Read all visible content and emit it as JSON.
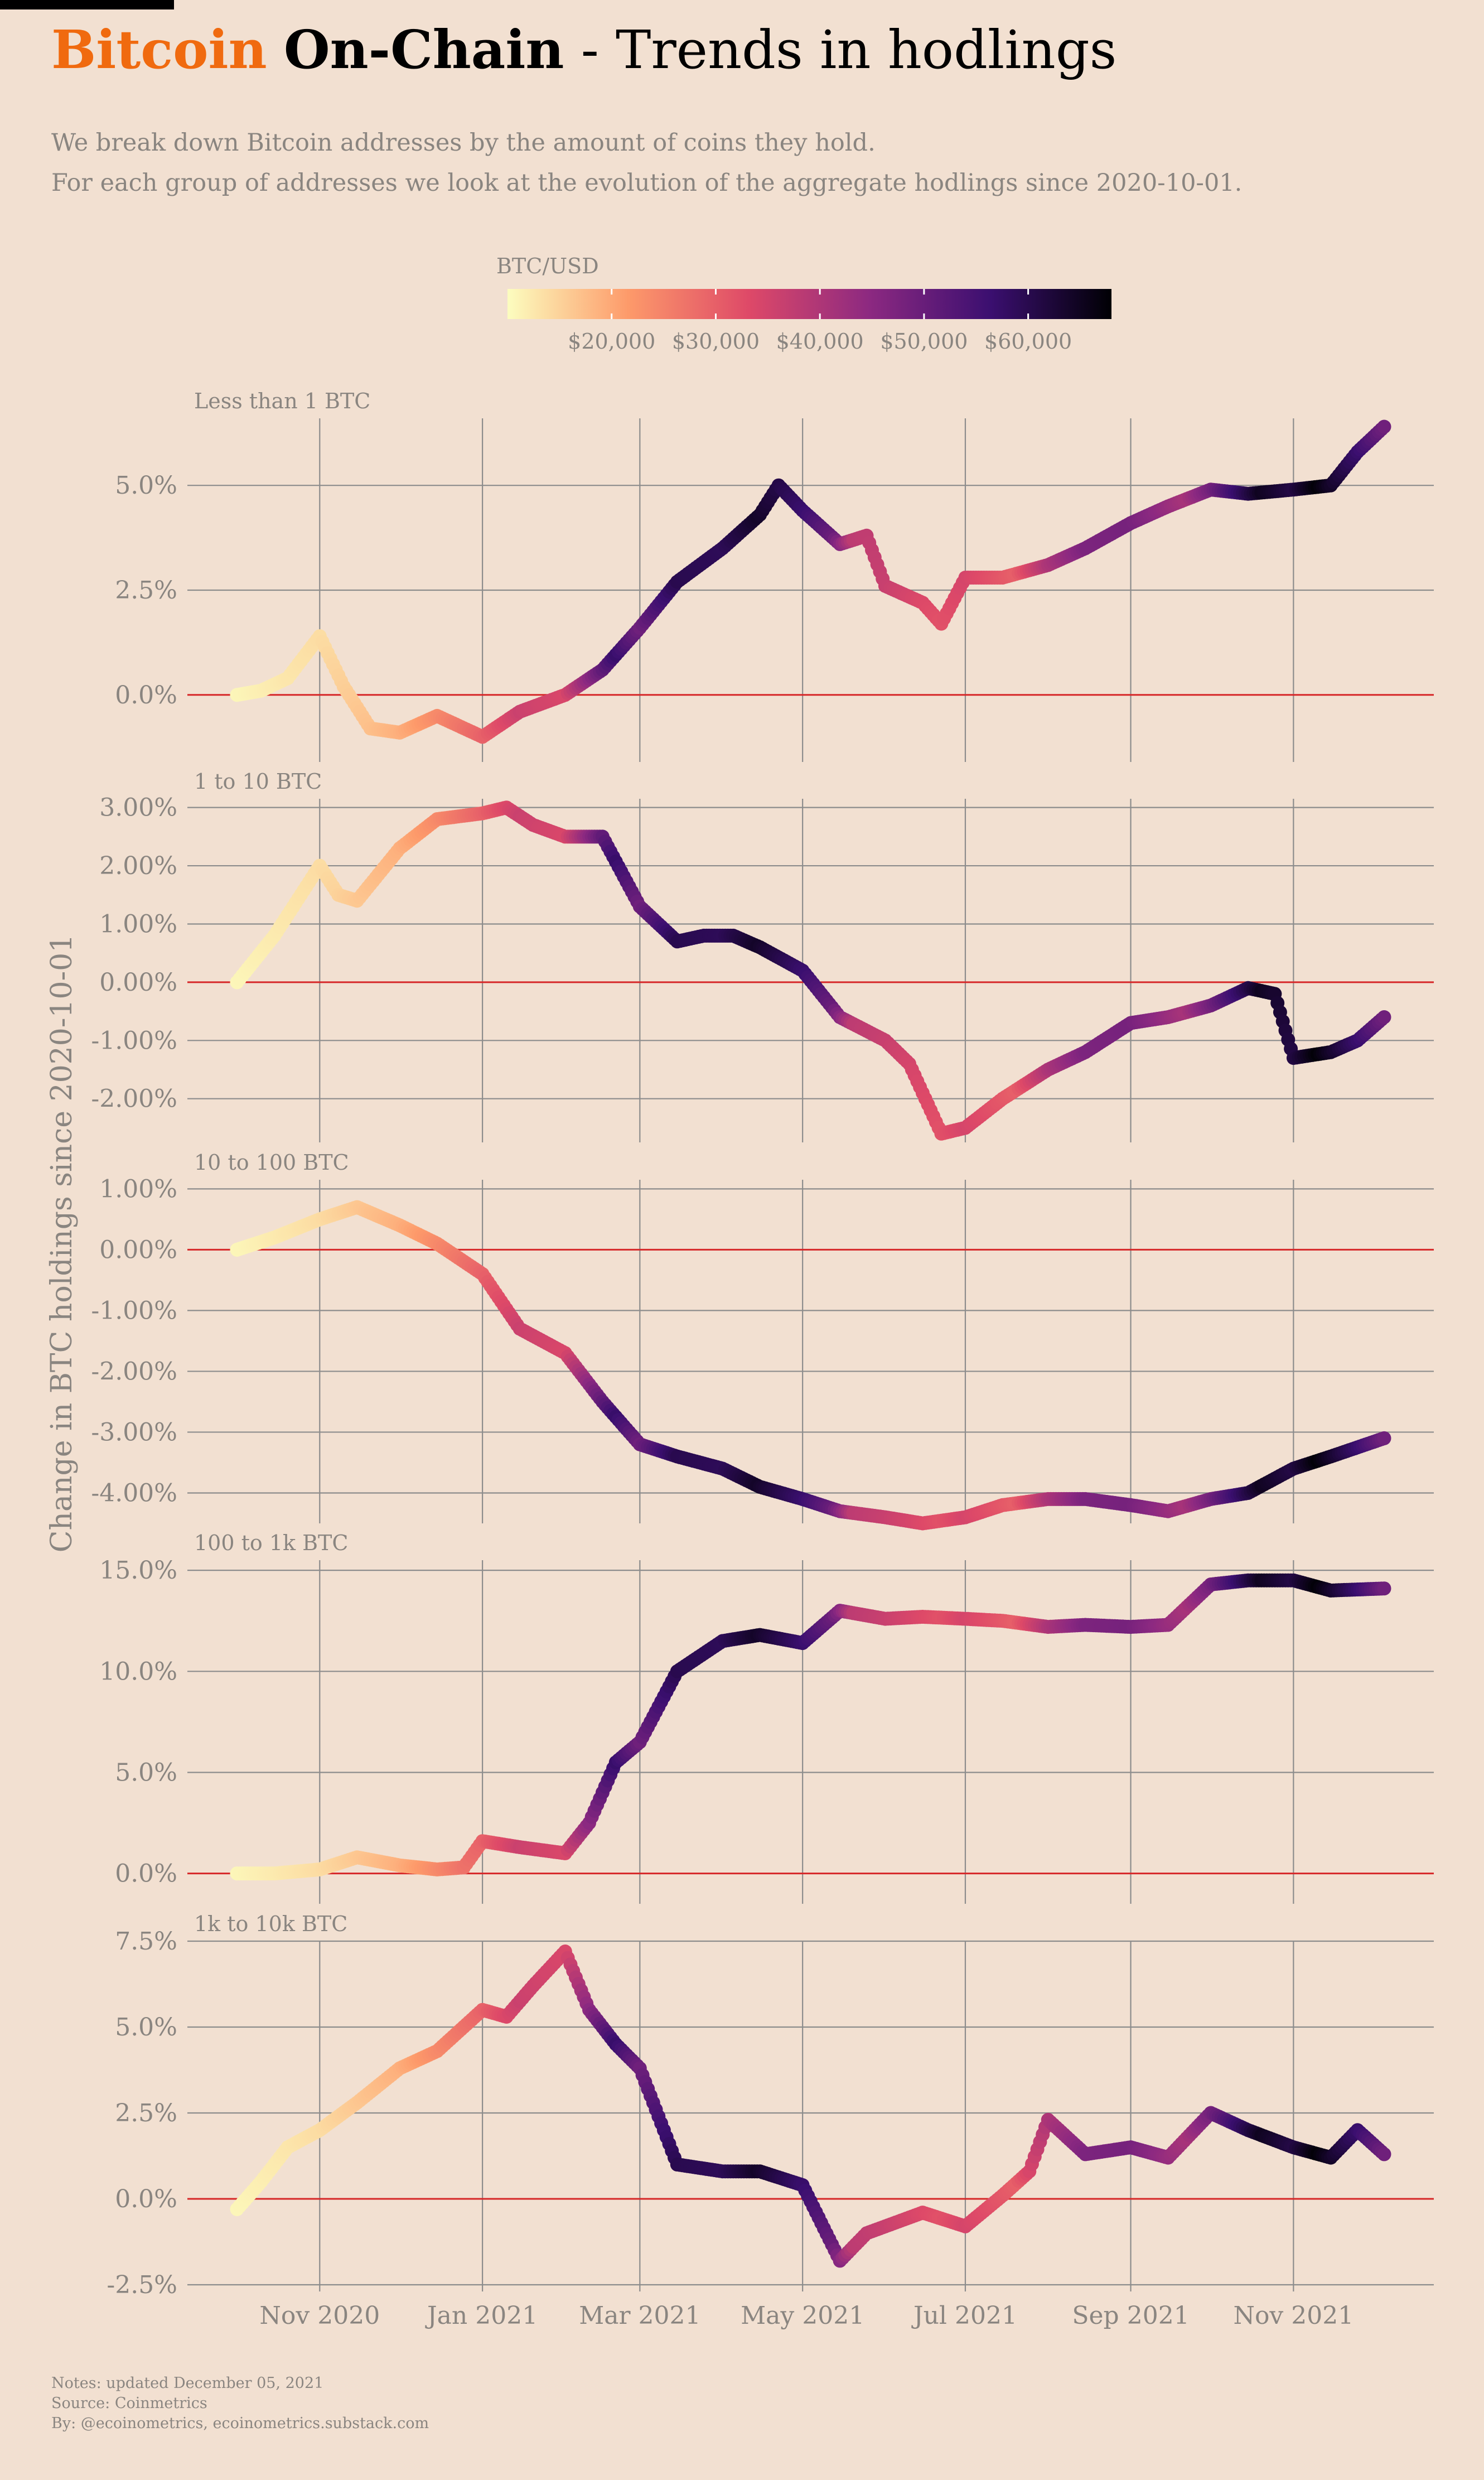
{
  "header": {
    "title_part1": "Bitcoin",
    "title_part2": "On-Chain",
    "title_part3": " - Trends in hodlings",
    "subtitle_line1": "We break down Bitcoin addresses by the amount of coins they hold.",
    "subtitle_line2": "For each group of addresses we look at the evolution of the aggregate hodlings since 2020-10-01."
  },
  "legend": {
    "title": "BTC/USD",
    "ticks": [
      "$20,000",
      "$30,000",
      "$40,000",
      "$50,000",
      "$60,000"
    ],
    "tick_values": [
      20000,
      30000,
      40000,
      50000,
      60000
    ],
    "range": [
      10000,
      68000
    ]
  },
  "y_axis_title": "Change in BTC holdings since 2020-10-01",
  "notes": {
    "line1": "Notes: updated December 05, 2021",
    "line2": "Source: Coinmetrics",
    "line3": "By: @ecoinometrics, ecoinometrics.substack.com"
  },
  "colors": {
    "background": "#f2e0d1",
    "grid": "#8c8c8c",
    "zero_line": "#d62728",
    "brand": "#f06a0f",
    "text_muted": "#8a8580",
    "colormap": [
      "#fcfdbf",
      "#fd9a6a",
      "#de4968",
      "#8c2981",
      "#3b0f70",
      "#000004"
    ]
  },
  "chart_data": {
    "type": "scatter",
    "x_type": "date",
    "x_range": [
      "2020-10-01",
      "2021-12-05"
    ],
    "x_ticks": [
      "2020-11-01",
      "2021-01-01",
      "2021-03-01",
      "2021-05-01",
      "2021-07-01",
      "2021-09-01",
      "2021-11-01"
    ],
    "x_tick_labels": [
      "Nov 2020",
      "Jan 2021",
      "Mar 2021",
      "May 2021",
      "Jul 2021",
      "Sep 2021",
      "Nov 2021"
    ],
    "color_variable": "BTC/USD",
    "grid": true,
    "price": {
      "x": [
        "2020-10-01",
        "2020-11-01",
        "2020-12-01",
        "2021-01-01",
        "2021-01-15",
        "2021-02-01",
        "2021-02-20",
        "2021-03-01",
        "2021-03-15",
        "2021-04-01",
        "2021-04-14",
        "2021-05-01",
        "2021-05-12",
        "2021-05-20",
        "2021-06-01",
        "2021-06-22",
        "2021-07-01",
        "2021-07-20",
        "2021-08-01",
        "2021-08-15",
        "2021-09-01",
        "2021-09-22",
        "2021-10-01",
        "2021-10-20",
        "2021-11-01",
        "2021-11-10",
        "2021-11-25",
        "2021-12-05"
      ],
      "y": [
        10800,
        13800,
        19000,
        29500,
        36000,
        34000,
        57000,
        49000,
        60000,
        59000,
        64000,
        57000,
        50000,
        38000,
        36500,
        32000,
        34500,
        30000,
        40000,
        47000,
        48000,
        41000,
        48000,
        65000,
        61000,
        67500,
        57000,
        49000
      ]
    },
    "panels": [
      {
        "label": "Less than 1 BTC",
        "y_range": [
          -1.6,
          6.6
        ],
        "y_ticks": [
          0,
          2.5,
          5
        ],
        "y_tick_labels": [
          "0.0%",
          "2.5%",
          "5.0%"
        ],
        "x": [
          "2020-10-01",
          "2020-10-10",
          "2020-10-20",
          "2020-11-01",
          "2020-11-10",
          "2020-11-20",
          "2020-12-01",
          "2020-12-15",
          "2021-01-01",
          "2021-01-15",
          "2021-02-01",
          "2021-02-15",
          "2021-03-01",
          "2021-03-15",
          "2021-04-01",
          "2021-04-15",
          "2021-04-22",
          "2021-05-01",
          "2021-05-15",
          "2021-05-25",
          "2021-06-01",
          "2021-06-15",
          "2021-06-22",
          "2021-07-01",
          "2021-07-15",
          "2021-08-01",
          "2021-08-15",
          "2021-09-01",
          "2021-09-15",
          "2021-10-01",
          "2021-10-15",
          "2021-11-01",
          "2021-11-15",
          "2021-11-25",
          "2021-12-05"
        ],
        "y": [
          0.0,
          0.1,
          0.4,
          1.4,
          0.2,
          -0.8,
          -0.9,
          -0.5,
          -1.0,
          -0.4,
          0.0,
          0.6,
          1.6,
          2.7,
          3.5,
          4.3,
          5.0,
          4.4,
          3.6,
          3.8,
          2.6,
          2.2,
          1.7,
          2.8,
          2.8,
          3.1,
          3.5,
          4.1,
          4.5,
          4.9,
          4.8,
          4.9,
          5.0,
          5.8,
          6.4
        ]
      },
      {
        "label": "1 to 10 BTC",
        "y_range": [
          -2.75,
          3.15
        ],
        "y_ticks": [
          -2,
          -1,
          0,
          1,
          2,
          3
        ],
        "y_tick_labels": [
          "-2.00%",
          "-1.00%",
          "0.00%",
          "1.00%",
          "2.00%",
          "3.00%"
        ],
        "x": [
          "2020-10-01",
          "2020-10-15",
          "2020-11-01",
          "2020-11-08",
          "2020-11-15",
          "2020-12-01",
          "2020-12-15",
          "2021-01-01",
          "2021-01-10",
          "2021-01-20",
          "2021-02-01",
          "2021-02-15",
          "2021-03-01",
          "2021-03-15",
          "2021-03-25",
          "2021-04-05",
          "2021-04-15",
          "2021-05-01",
          "2021-05-15",
          "2021-06-01",
          "2021-06-10",
          "2021-06-22",
          "2021-07-01",
          "2021-07-15",
          "2021-08-01",
          "2021-08-15",
          "2021-09-01",
          "2021-09-15",
          "2021-10-01",
          "2021-10-15",
          "2021-10-25",
          "2021-11-01",
          "2021-11-15",
          "2021-11-25",
          "2021-12-05"
        ],
        "y": [
          0.0,
          0.8,
          2.0,
          1.5,
          1.4,
          2.3,
          2.8,
          2.9,
          3.0,
          2.7,
          2.5,
          2.5,
          1.3,
          0.7,
          0.8,
          0.8,
          0.6,
          0.2,
          -0.6,
          -1.0,
          -1.4,
          -2.6,
          -2.5,
          -2.0,
          -1.5,
          -1.2,
          -0.7,
          -0.6,
          -0.4,
          -0.1,
          -0.2,
          -1.3,
          -1.2,
          -1.0,
          -0.6
        ]
      },
      {
        "label": "10 to 100 BTC",
        "y_range": [
          -4.5,
          1.15
        ],
        "y_ticks": [
          -4,
          -3,
          -2,
          -1,
          0,
          1
        ],
        "y_tick_labels": [
          "-4.00%",
          "-3.00%",
          "-2.00%",
          "-1.00%",
          "0.00%",
          "1.00%"
        ],
        "x": [
          "2020-10-01",
          "2020-10-15",
          "2020-11-01",
          "2020-11-15",
          "2020-12-01",
          "2020-12-15",
          "2021-01-01",
          "2021-01-15",
          "2021-02-01",
          "2021-02-15",
          "2021-03-01",
          "2021-03-15",
          "2021-04-01",
          "2021-04-15",
          "2021-05-01",
          "2021-05-15",
          "2021-06-01",
          "2021-06-15",
          "2021-07-01",
          "2021-07-15",
          "2021-08-01",
          "2021-08-15",
          "2021-09-01",
          "2021-09-15",
          "2021-10-01",
          "2021-10-15",
          "2021-11-01",
          "2021-11-15",
          "2021-12-05"
        ],
        "y": [
          0.0,
          0.2,
          0.5,
          0.7,
          0.4,
          0.1,
          -0.4,
          -1.3,
          -1.7,
          -2.5,
          -3.2,
          -3.4,
          -3.6,
          -3.9,
          -4.1,
          -4.3,
          -4.4,
          -4.5,
          -4.4,
          -4.2,
          -4.1,
          -4.1,
          -4.2,
          -4.3,
          -4.1,
          -4.0,
          -3.6,
          -3.4,
          -3.1
        ]
      },
      {
        "label": "100 to 1k BTC",
        "y_range": [
          -1.5,
          15.5
        ],
        "y_ticks": [
          0,
          5,
          10,
          15
        ],
        "y_tick_labels": [
          "0.0%",
          "5.0%",
          "10.0%",
          "15.0%"
        ],
        "x": [
          "2020-10-01",
          "2020-10-15",
          "2020-11-01",
          "2020-11-15",
          "2020-12-01",
          "2020-12-15",
          "2020-12-25",
          "2021-01-01",
          "2021-01-15",
          "2021-02-01",
          "2021-02-10",
          "2021-02-20",
          "2021-03-01",
          "2021-03-15",
          "2021-04-01",
          "2021-04-15",
          "2021-05-01",
          "2021-05-15",
          "2021-06-01",
          "2021-06-15",
          "2021-07-01",
          "2021-07-15",
          "2021-08-01",
          "2021-08-15",
          "2021-09-01",
          "2021-09-15",
          "2021-10-01",
          "2021-10-15",
          "2021-11-01",
          "2021-11-15",
          "2021-12-05"
        ],
        "y": [
          0.0,
          0.0,
          0.2,
          0.8,
          0.4,
          0.2,
          0.3,
          1.6,
          1.3,
          1.0,
          2.5,
          5.5,
          6.5,
          10.0,
          11.5,
          11.8,
          11.4,
          13.0,
          12.6,
          12.7,
          12.6,
          12.5,
          12.2,
          12.3,
          12.2,
          12.3,
          14.3,
          14.5,
          14.5,
          14.0,
          14.1
        ]
      },
      {
        "label": "1k to 10k BTC",
        "y_range": [
          -2.5,
          7.5
        ],
        "y_ticks": [
          -2.5,
          0,
          2.5,
          5,
          7.5
        ],
        "y_tick_labels": [
          "-2.5%",
          "0.0%",
          "2.5%",
          "5.0%",
          "7.5%"
        ],
        "x": [
          "2020-10-01",
          "2020-10-10",
          "2020-10-20",
          "2020-11-01",
          "2020-11-15",
          "2020-12-01",
          "2020-12-15",
          "2021-01-01",
          "2021-01-10",
          "2021-01-20",
          "2021-02-01",
          "2021-02-10",
          "2021-02-20",
          "2021-03-01",
          "2021-03-15",
          "2021-04-01",
          "2021-04-15",
          "2021-05-01",
          "2021-05-15",
          "2021-05-25",
          "2021-06-01",
          "2021-06-15",
          "2021-07-01",
          "2021-07-15",
          "2021-07-25",
          "2021-08-01",
          "2021-08-15",
          "2021-09-01",
          "2021-09-15",
          "2021-10-01",
          "2021-10-15",
          "2021-11-01",
          "2021-11-15",
          "2021-11-25",
          "2021-12-05"
        ],
        "y": [
          -0.3,
          0.5,
          1.5,
          2.0,
          2.8,
          3.8,
          4.3,
          5.5,
          5.3,
          6.2,
          7.2,
          5.5,
          4.5,
          3.8,
          1.0,
          0.8,
          0.8,
          0.4,
          -1.8,
          -1.0,
          -0.8,
          -0.4,
          -0.8,
          0.1,
          0.8,
          2.3,
          1.3,
          1.5,
          1.2,
          2.5,
          2.0,
          1.5,
          1.2,
          2.0,
          1.3
        ]
      }
    ]
  }
}
